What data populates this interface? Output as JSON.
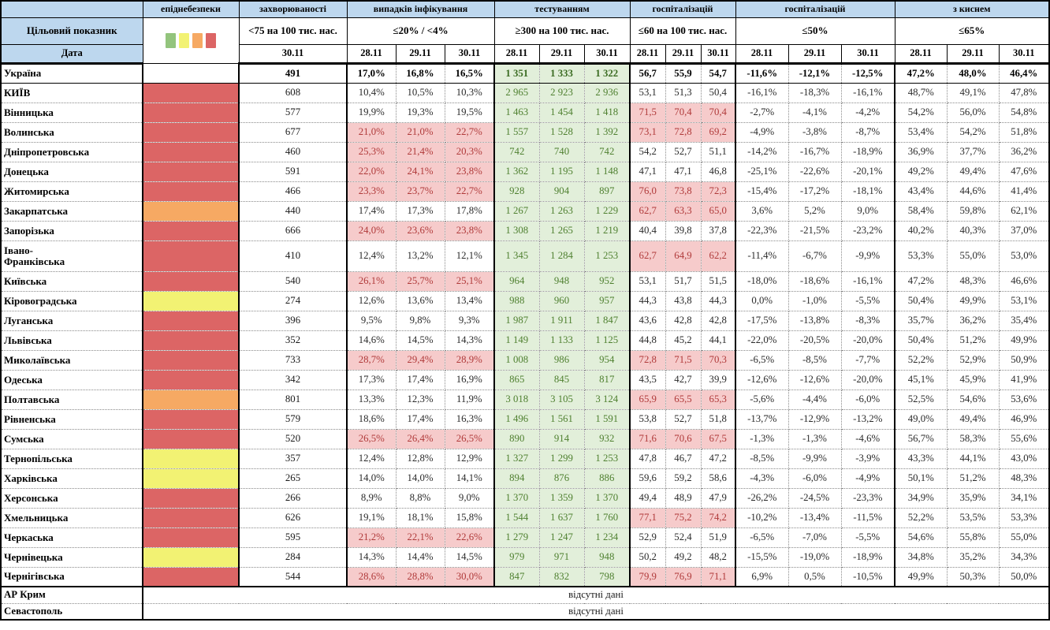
{
  "meta": {
    "no_data_label": "відсутні дані"
  },
  "colors": {
    "header_bg": "#BDD7EE",
    "test_bg": "#E2EFDA",
    "test_text": "#4F8030",
    "alert_bg": "#F6CBCB",
    "alert_text": "#B03A3A",
    "legend": [
      "#93C47D",
      "#F2F273",
      "#F6A963",
      "#DC6565"
    ],
    "danger": {
      "red": "#DC6565",
      "orange": "#F6A963",
      "yellow": "#F2F273",
      "green": "#93C47D"
    }
  },
  "header": {
    "top_labels": [
      "епіднебезпеки",
      "захворюваності",
      "випадків інфікування",
      "тестуванням",
      "госпіталізацій",
      "госпіталізацій",
      "з киснем"
    ],
    "target_row_label": "Цільовий показник",
    "date_row_label": "Дата",
    "targets": [
      "<75 на 100 тис. нас.",
      "≤20% / <4%",
      "≥300 на 100 тис. нас.",
      "≤60 на 100 тис. нас.",
      "≤50%",
      "≤65%"
    ],
    "incidence_date": "30.11",
    "dates": [
      "28.11",
      "29.11",
      "30.11"
    ]
  },
  "thresholds": {
    "positivity_pct": 20,
    "hosp_per100k": 60
  },
  "rows": [
    {
      "name": "Україна",
      "bold": true,
      "danger": null,
      "incidence": "491",
      "positivity": [
        "17,0%",
        "16,8%",
        "16,5%"
      ],
      "testing": [
        "1 351",
        "1 333",
        "1 322"
      ],
      "hosp": [
        "56,7",
        "55,9",
        "54,7"
      ],
      "hosp_change": [
        "-11,6%",
        "-12,1%",
        "-12,5%"
      ],
      "oxygen": [
        "47,2%",
        "48,0%",
        "46,4%"
      ]
    },
    {
      "name": "КИЇВ",
      "danger": "red",
      "incidence": "608",
      "positivity": [
        "10,4%",
        "10,5%",
        "10,3%"
      ],
      "testing": [
        "2 965",
        "2 923",
        "2 936"
      ],
      "hosp": [
        "53,1",
        "51,3",
        "50,4"
      ],
      "hosp_change": [
        "-16,1%",
        "-18,3%",
        "-16,1%"
      ],
      "oxygen": [
        "48,7%",
        "49,1%",
        "47,8%"
      ]
    },
    {
      "name": "Вінницька",
      "danger": "red",
      "incidence": "577",
      "positivity": [
        "19,9%",
        "19,3%",
        "19,5%"
      ],
      "testing": [
        "1 463",
        "1 454",
        "1 418"
      ],
      "hosp": [
        "71,5",
        "70,4",
        "70,4"
      ],
      "hosp_change": [
        "-2,7%",
        "-4,1%",
        "-4,2%"
      ],
      "oxygen": [
        "54,2%",
        "56,0%",
        "54,8%"
      ]
    },
    {
      "name": "Волинська",
      "danger": "red",
      "incidence": "677",
      "positivity": [
        "21,0%",
        "21,0%",
        "22,7%"
      ],
      "testing": [
        "1 557",
        "1 528",
        "1 392"
      ],
      "hosp": [
        "73,1",
        "72,8",
        "69,2"
      ],
      "hosp_change": [
        "-4,9%",
        "-3,8%",
        "-8,7%"
      ],
      "oxygen": [
        "53,4%",
        "54,2%",
        "51,8%"
      ]
    },
    {
      "name": "Дніпропетровська",
      "danger": "red",
      "incidence": "460",
      "positivity": [
        "25,3%",
        "21,4%",
        "20,3%"
      ],
      "testing": [
        "742",
        "740",
        "742"
      ],
      "hosp": [
        "54,2",
        "52,7",
        "51,1"
      ],
      "hosp_change": [
        "-14,2%",
        "-16,7%",
        "-18,9%"
      ],
      "oxygen": [
        "36,9%",
        "37,7%",
        "36,2%"
      ]
    },
    {
      "name": "Донецька",
      "danger": "red",
      "incidence": "591",
      "positivity": [
        "22,0%",
        "24,1%",
        "23,8%"
      ],
      "testing": [
        "1 362",
        "1 195",
        "1 148"
      ],
      "hosp": [
        "47,1",
        "47,1",
        "46,8"
      ],
      "hosp_change": [
        "-25,1%",
        "-22,6%",
        "-20,1%"
      ],
      "oxygen": [
        "49,2%",
        "49,4%",
        "47,6%"
      ]
    },
    {
      "name": "Житомирська",
      "danger": "red",
      "incidence": "466",
      "positivity": [
        "23,3%",
        "23,7%",
        "22,7%"
      ],
      "testing": [
        "928",
        "904",
        "897"
      ],
      "hosp": [
        "76,0",
        "73,8",
        "72,3"
      ],
      "hosp_change": [
        "-15,4%",
        "-17,2%",
        "-18,1%"
      ],
      "oxygen": [
        "43,4%",
        "44,6%",
        "41,4%"
      ]
    },
    {
      "name": "Закарпатська",
      "danger": "orange",
      "incidence": "440",
      "positivity": [
        "17,4%",
        "17,3%",
        "17,8%"
      ],
      "testing": [
        "1 267",
        "1 263",
        "1 229"
      ],
      "hosp": [
        "62,7",
        "63,3",
        "65,0"
      ],
      "hosp_change": [
        "3,6%",
        "5,2%",
        "9,0%"
      ],
      "oxygen": [
        "58,4%",
        "59,8%",
        "62,1%"
      ]
    },
    {
      "name": "Запорізька",
      "danger": "red",
      "incidence": "666",
      "positivity": [
        "24,0%",
        "23,6%",
        "23,8%"
      ],
      "testing": [
        "1 308",
        "1 265",
        "1 219"
      ],
      "hosp": [
        "40,4",
        "39,8",
        "37,8"
      ],
      "hosp_change": [
        "-22,3%",
        "-21,5%",
        "-23,2%"
      ],
      "oxygen": [
        "40,2%",
        "40,3%",
        "37,0%"
      ]
    },
    {
      "name": "Івано-\nФранківська",
      "tall": true,
      "danger": "red",
      "incidence": "410",
      "positivity": [
        "12,4%",
        "13,2%",
        "12,1%"
      ],
      "testing": [
        "1 345",
        "1 284",
        "1 253"
      ],
      "hosp": [
        "62,7",
        "64,9",
        "62,2"
      ],
      "hosp_change": [
        "-11,4%",
        "-6,7%",
        "-9,9%"
      ],
      "oxygen": [
        "53,3%",
        "55,0%",
        "53,0%"
      ]
    },
    {
      "name": "Київська",
      "danger": "red",
      "incidence": "540",
      "positivity": [
        "26,1%",
        "25,7%",
        "25,1%"
      ],
      "testing": [
        "964",
        "948",
        "952"
      ],
      "hosp": [
        "53,1",
        "51,7",
        "51,5"
      ],
      "hosp_change": [
        "-18,0%",
        "-18,6%",
        "-16,1%"
      ],
      "oxygen": [
        "47,2%",
        "48,3%",
        "46,6%"
      ]
    },
    {
      "name": "Кіровоградська",
      "danger": "yellow",
      "incidence": "274",
      "positivity": [
        "12,6%",
        "13,6%",
        "13,4%"
      ],
      "testing": [
        "988",
        "960",
        "957"
      ],
      "hosp": [
        "44,3",
        "43,8",
        "44,3"
      ],
      "hosp_change": [
        "0,0%",
        "-1,0%",
        "-5,5%"
      ],
      "oxygen": [
        "50,4%",
        "49,9%",
        "53,1%"
      ]
    },
    {
      "name": "Луганська",
      "danger": "red",
      "incidence": "396",
      "positivity": [
        "9,5%",
        "9,8%",
        "9,3%"
      ],
      "testing": [
        "1 987",
        "1 911",
        "1 847"
      ],
      "hosp": [
        "43,6",
        "42,8",
        "42,8"
      ],
      "hosp_change": [
        "-17,5%",
        "-13,8%",
        "-8,3%"
      ],
      "oxygen": [
        "35,7%",
        "36,2%",
        "35,4%"
      ]
    },
    {
      "name": "Львівська",
      "danger": "red",
      "incidence": "352",
      "positivity": [
        "14,6%",
        "14,5%",
        "14,3%"
      ],
      "testing": [
        "1 149",
        "1 133",
        "1 125"
      ],
      "hosp": [
        "44,8",
        "45,2",
        "44,1"
      ],
      "hosp_change": [
        "-22,0%",
        "-20,5%",
        "-20,0%"
      ],
      "oxygen": [
        "50,4%",
        "51,2%",
        "49,9%"
      ]
    },
    {
      "name": "Миколаївська",
      "danger": "red",
      "incidence": "733",
      "positivity": [
        "28,7%",
        "29,4%",
        "28,9%"
      ],
      "testing": [
        "1 008",
        "986",
        "954"
      ],
      "hosp": [
        "72,8",
        "71,5",
        "70,3"
      ],
      "hosp_change": [
        "-6,5%",
        "-8,5%",
        "-7,7%"
      ],
      "oxygen": [
        "52,2%",
        "52,9%",
        "50,9%"
      ]
    },
    {
      "name": "Одеська",
      "danger": "red",
      "incidence": "342",
      "positivity": [
        "17,3%",
        "17,4%",
        "16,9%"
      ],
      "testing": [
        "865",
        "845",
        "817"
      ],
      "hosp": [
        "43,5",
        "42,7",
        "39,9"
      ],
      "hosp_change": [
        "-12,6%",
        "-12,6%",
        "-20,0%"
      ],
      "oxygen": [
        "45,1%",
        "45,9%",
        "41,9%"
      ]
    },
    {
      "name": "Полтавська",
      "danger": "orange",
      "incidence": "801",
      "positivity": [
        "13,3%",
        "12,3%",
        "11,9%"
      ],
      "testing": [
        "3 018",
        "3 105",
        "3 124"
      ],
      "hosp": [
        "65,9",
        "65,5",
        "65,3"
      ],
      "hosp_change": [
        "-5,6%",
        "-4,4%",
        "-6,0%"
      ],
      "oxygen": [
        "52,5%",
        "54,6%",
        "53,6%"
      ]
    },
    {
      "name": "Рівненська",
      "danger": "red",
      "incidence": "579",
      "positivity": [
        "18,6%",
        "17,4%",
        "16,3%"
      ],
      "testing": [
        "1 496",
        "1 561",
        "1 591"
      ],
      "hosp": [
        "53,8",
        "52,7",
        "51,8"
      ],
      "hosp_change": [
        "-13,7%",
        "-12,9%",
        "-13,2%"
      ],
      "oxygen": [
        "49,0%",
        "49,4%",
        "46,9%"
      ]
    },
    {
      "name": "Сумська",
      "danger": "red",
      "incidence": "520",
      "positivity": [
        "26,5%",
        "26,4%",
        "26,5%"
      ],
      "testing": [
        "890",
        "914",
        "932"
      ],
      "hosp": [
        "71,6",
        "70,6",
        "67,5"
      ],
      "hosp_change": [
        "-1,3%",
        "-1,3%",
        "-4,6%"
      ],
      "oxygen": [
        "56,7%",
        "58,3%",
        "55,6%"
      ]
    },
    {
      "name": "Тернопільська",
      "danger": "yellow",
      "incidence": "357",
      "positivity": [
        "12,4%",
        "12,8%",
        "12,9%"
      ],
      "testing": [
        "1 327",
        "1 299",
        "1 253"
      ],
      "hosp": [
        "47,8",
        "46,7",
        "47,2"
      ],
      "hosp_change": [
        "-8,5%",
        "-9,9%",
        "-3,9%"
      ],
      "oxygen": [
        "43,3%",
        "44,1%",
        "43,0%"
      ]
    },
    {
      "name": "Харківська",
      "danger": "yellow",
      "incidence": "265",
      "positivity": [
        "14,0%",
        "14,0%",
        "14,1%"
      ],
      "testing": [
        "894",
        "876",
        "886"
      ],
      "hosp": [
        "59,6",
        "59,2",
        "58,6"
      ],
      "hosp_change": [
        "-4,3%",
        "-6,0%",
        "-4,9%"
      ],
      "oxygen": [
        "50,1%",
        "51,2%",
        "48,3%"
      ]
    },
    {
      "name": "Херсонська",
      "danger": "red",
      "incidence": "266",
      "positivity": [
        "8,9%",
        "8,8%",
        "9,0%"
      ],
      "testing": [
        "1 370",
        "1 359",
        "1 370"
      ],
      "hosp": [
        "49,4",
        "48,9",
        "47,9"
      ],
      "hosp_change": [
        "-26,2%",
        "-24,5%",
        "-23,3%"
      ],
      "oxygen": [
        "34,9%",
        "35,9%",
        "34,1%"
      ]
    },
    {
      "name": "Хмельницька",
      "danger": "red",
      "incidence": "626",
      "positivity": [
        "19,1%",
        "18,1%",
        "15,8%"
      ],
      "testing": [
        "1 544",
        "1 637",
        "1 760"
      ],
      "hosp": [
        "77,1",
        "75,2",
        "74,2"
      ],
      "hosp_change": [
        "-10,2%",
        "-13,4%",
        "-11,5%"
      ],
      "oxygen": [
        "52,2%",
        "53,5%",
        "53,3%"
      ]
    },
    {
      "name": "Черкаська",
      "danger": "red",
      "incidence": "595",
      "positivity": [
        "21,2%",
        "22,1%",
        "22,6%"
      ],
      "testing": [
        "1 279",
        "1 247",
        "1 234"
      ],
      "hosp": [
        "52,9",
        "52,4",
        "51,9"
      ],
      "hosp_change": [
        "-6,5%",
        "-7,0%",
        "-5,5%"
      ],
      "oxygen": [
        "54,6%",
        "55,8%",
        "55,0%"
      ]
    },
    {
      "name": "Чернівецька",
      "danger": "yellow",
      "incidence": "284",
      "positivity": [
        "14,3%",
        "14,4%",
        "14,5%"
      ],
      "testing": [
        "979",
        "971",
        "948"
      ],
      "hosp": [
        "50,2",
        "49,2",
        "48,2"
      ],
      "hosp_change": [
        "-15,5%",
        "-19,0%",
        "-18,9%"
      ],
      "oxygen": [
        "34,8%",
        "35,2%",
        "34,3%"
      ]
    },
    {
      "name": "Чернігівська",
      "danger": "red",
      "incidence": "544",
      "positivity": [
        "28,6%",
        "28,8%",
        "30,0%"
      ],
      "testing": [
        "847",
        "832",
        "798"
      ],
      "hosp": [
        "79,9",
        "76,9",
        "71,1"
      ],
      "hosp_change": [
        "6,9%",
        "0,5%",
        "-10,5%"
      ],
      "oxygen": [
        "49,9%",
        "50,3%",
        "50,0%"
      ]
    },
    {
      "name": "АР Крим",
      "no_data": true
    },
    {
      "name": "Севастополь",
      "no_data": true
    }
  ]
}
